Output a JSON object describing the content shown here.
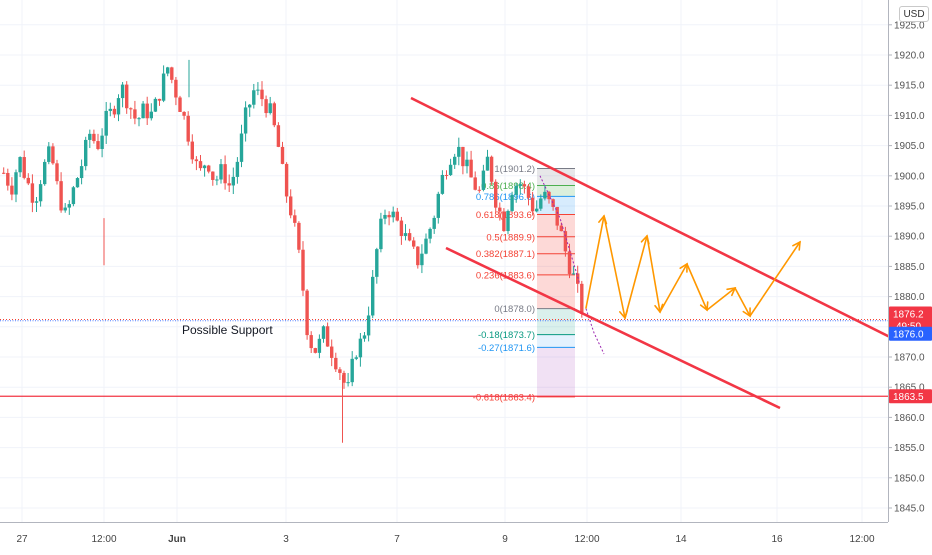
{
  "chart_data": {
    "type": "candlestick",
    "currency": "USD",
    "y_ticks": [
      "1845.0",
      "1850.0",
      "1855.0",
      "1860.0",
      "1865.0",
      "1870.0",
      "1875.0",
      "1880.0",
      "1885.0",
      "1890.0",
      "1895.0",
      "1900.0",
      "1905.0",
      "1910.0",
      "1915.0",
      "1920.0",
      "1925.0"
    ],
    "ylim": [
      1843,
      1926
    ],
    "x_ticks": [
      {
        "label": "27",
        "bold": false
      },
      {
        "label": "12:00",
        "bold": false
      },
      {
        "label": "Jun",
        "bold": true
      },
      {
        "label": "3",
        "bold": false
      },
      {
        "label": "7",
        "bold": false
      },
      {
        "label": "9",
        "bold": false
      },
      {
        "label": "12:00",
        "bold": false
      },
      {
        "label": "14",
        "bold": false
      },
      {
        "label": "16",
        "bold": false
      },
      {
        "label": "12:00",
        "bold": false
      }
    ],
    "price_tags": {
      "current_price": "1876.2",
      "countdown": "49:50",
      "blue_level": "1876.0",
      "red_level": "1863.5"
    },
    "fib_levels": [
      {
        "label": "1(1901.2)",
        "value": 1901.2,
        "color": "#787b86"
      },
      {
        "label": "0.86(1898.4)",
        "value": 1898.4,
        "color": "#4caf50"
      },
      {
        "label": "0.786(1896.6)",
        "value": 1896.6,
        "color": "#2196f3"
      },
      {
        "label": "0.618(1893.6)",
        "value": 1893.6,
        "color": "#f44336"
      },
      {
        "label": "0.5(1889.9)",
        "value": 1889.9,
        "color": "#f44336"
      },
      {
        "label": "0.382(1887.1)",
        "value": 1887.1,
        "color": "#f44336"
      },
      {
        "label": "0.236(1883.6)",
        "value": 1883.6,
        "color": "#f44336"
      },
      {
        "label": "0(1878.0)",
        "value": 1878.0,
        "color": "#787b86"
      },
      {
        "label": "-0.18(1873.7)",
        "value": 1873.7,
        "color": "#089981"
      },
      {
        "label": "-0.27(1871.6)",
        "value": 1871.6,
        "color": "#2196f3"
      },
      {
        "label": "-0.618(1863.4)",
        "value": 1863.4,
        "color": "#f44336"
      }
    ],
    "annotations": {
      "support_text": "Possible Support"
    },
    "candles_start_price": 1900.5,
    "candle_path_targets": [
      1900.5,
      1898.0,
      1903.0,
      1899.0,
      1896.0,
      1901.0,
      1904.0,
      1897.0,
      1893.0,
      1898.0,
      1902.0,
      1907.0,
      1905.0,
      1909.0,
      1911.0,
      1915.0,
      1912.0,
      1909.0,
      1911.0,
      1910.0,
      1914.0,
      1918.0,
      1914.0,
      1910.0,
      1905.0,
      1900.0,
      1903.0,
      1899.0,
      1901.0,
      1898.0,
      1903.0,
      1910.0,
      1914.0,
      1913.0,
      1911.0,
      1906.0,
      1898.0,
      1893.0,
      1885.0,
      1873.0,
      1871.0,
      1874.0,
      1871.0,
      1868.0,
      1864.0,
      1871.0,
      1873.0,
      1880.0,
      1890.0,
      1895.0,
      1893.0,
      1891.0,
      1888.0,
      1886.0,
      1889.0,
      1893.0,
      1899.0,
      1903.0,
      1905.0,
      1902.0,
      1899.0,
      1897.0,
      1903.0,
      1896.0,
      1892.0,
      1898.0,
      1899.0,
      1897.0,
      1894.0,
      1897.0,
      1895.0,
      1892.0,
      1887.0,
      1883.0,
      1878.0
    ]
  }
}
